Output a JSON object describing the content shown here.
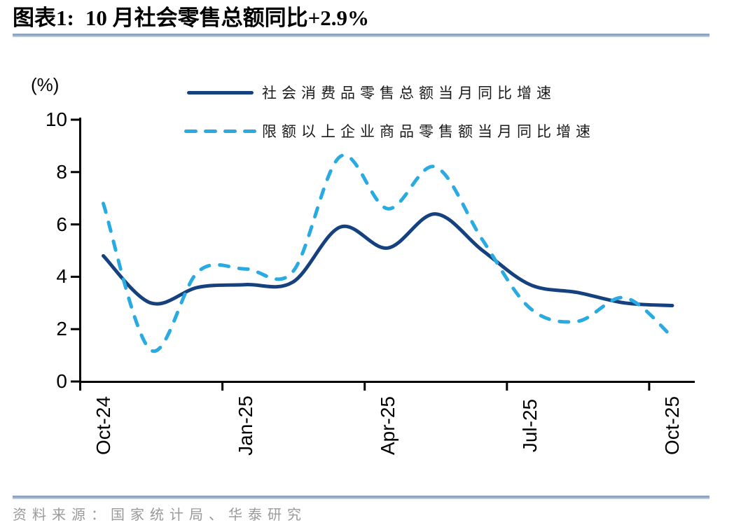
{
  "header": {
    "figure_label": "图表1:",
    "title": "10 月社会零售总额同比+2.9%"
  },
  "chart_data": {
    "type": "line",
    "title": "10 月社会零售总额同比+2.9%",
    "unit_label": "(%)",
    "grid": false,
    "legend_position": "top",
    "ylim": [
      0,
      10
    ],
    "y_tick_labels": [
      "10",
      "8",
      "6",
      "4",
      "2",
      "0"
    ],
    "x_tick_labels": [
      "Oct-24",
      "Jan-25",
      "Apr-25",
      "Jul-25",
      "Oct-25"
    ],
    "categories": [
      "Oct-24",
      "Nov-24",
      "Dec-24",
      "Jan-25",
      "Feb-25",
      "Mar-25",
      "Apr-25",
      "May-25",
      "Jun-25",
      "Jul-25",
      "Aug-25",
      "Sep-25",
      "Oct-25"
    ],
    "series": [
      {
        "name": "社会消费品零售总额当月同比增速",
        "style": "solid",
        "color": "#15417e",
        "values": [
          4.8,
          3.0,
          3.6,
          3.7,
          3.8,
          5.9,
          5.1,
          6.4,
          5.0,
          3.7,
          3.4,
          3.0,
          2.9
        ]
      },
      {
        "name": "限额以上企业商品零售额当月同比增速",
        "style": "dashed",
        "color": "#29abe2",
        "values": [
          6.8,
          1.2,
          4.2,
          4.3,
          4.2,
          8.6,
          6.6,
          8.2,
          5.4,
          2.8,
          2.3,
          3.2,
          1.7
        ]
      }
    ]
  },
  "footer": {
    "source": "资料来源：国家统计局、华泰研究"
  },
  "colors": {
    "series_solid": "#15417e",
    "series_dashed": "#29abe2",
    "rule": "#8fa5bf",
    "axis": "#000000",
    "source_text": "#9a9a9a"
  }
}
